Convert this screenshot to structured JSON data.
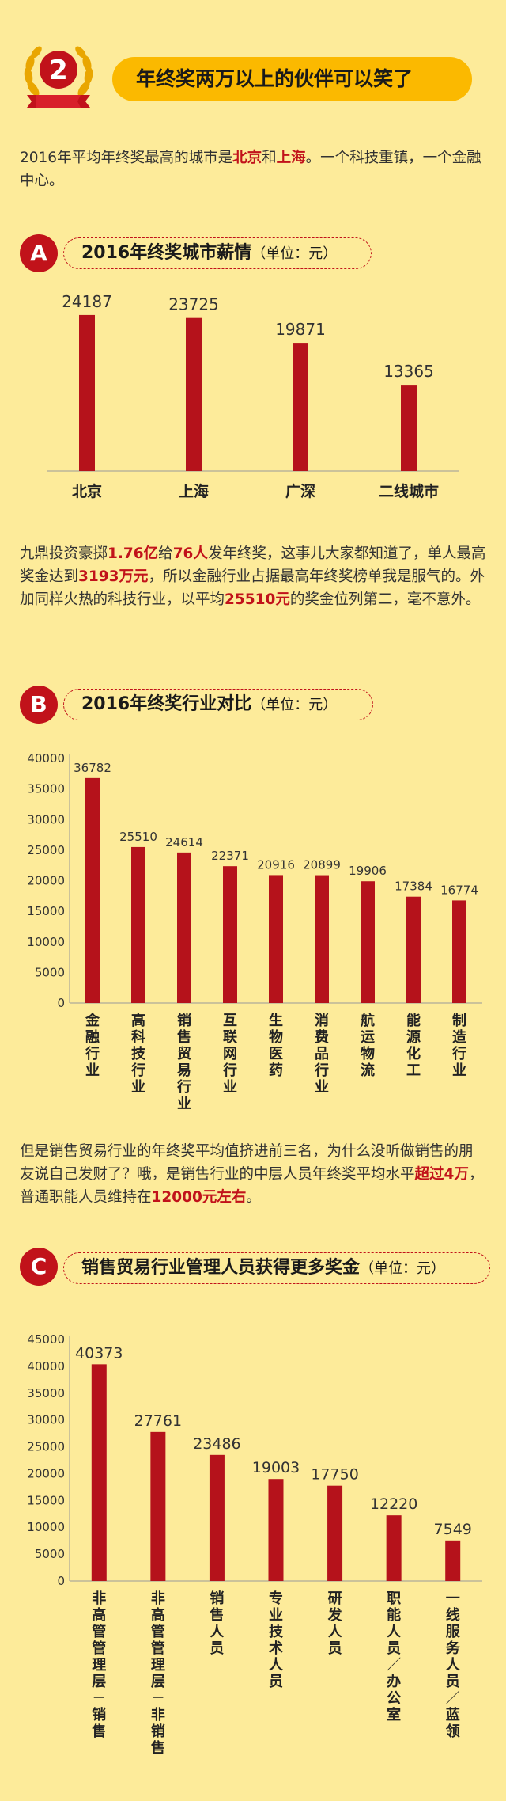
{
  "header": {
    "badge_number": "2",
    "title": "年终奖两万以上的伙伴可以笑了",
    "badge_color": "#c1121a",
    "wreath_color": "#e9a600"
  },
  "intro": {
    "t1": "2016年平均年终奖最高的城市是",
    "city1": "北京",
    "t2": "和",
    "city2": "上海",
    "t3": "。一个科技重镇，一个金融中心。"
  },
  "section_a": {
    "letter": "A",
    "title": "2016年终奖城市薪情",
    "unit": "（单位：元）"
  },
  "section_b": {
    "letter": "B",
    "title": "2016年终奖行业对比",
    "unit": "（单位：元）"
  },
  "section_c": {
    "letter": "C",
    "title": "销售贸易行业管理人员获得更多奖金",
    "unit": "（单位：元）"
  },
  "para2": {
    "t1": "九鼎投资豪掷",
    "v1": "1.76亿",
    "t2": "给",
    "v2": "76人",
    "t3": "发年终奖，这事儿大家都知道了，单人最高奖金达到",
    "v3": "3193万元",
    "t4": "，所以金融行业占据最高年终奖榜单我是服气的。外加同样火热的科技行业，以平均",
    "v4": "25510元",
    "t5": "的奖金位列第二，毫不意外。"
  },
  "para3": {
    "t1": "但是销售贸易行业的年终奖平均值挤进前三名，为什么没听做销售的朋友说自己发财了？哦，是销售行业的中层人员年终奖平均水平",
    "v1": "超过4万",
    "t2": "，普通职能人员维持在",
    "v2": "12000元左右",
    "t3": "。"
  },
  "chart_data": [
    {
      "type": "bar",
      "categories": [
        "北京",
        "上海",
        "广深",
        "二线城市"
      ],
      "values": [
        24187,
        23725,
        19871,
        13365
      ],
      "ylim": [
        0,
        27000
      ],
      "grid": false,
      "bar_color": "#b5121b"
    },
    {
      "type": "bar",
      "categories": [
        "金融行业",
        "高科技行业",
        "销售贸易行业",
        "互联网行业",
        "生物医药",
        "消费品行业",
        "航运物流",
        "能源化工",
        "制造行业"
      ],
      "values": [
        36782,
        25510,
        24614,
        22371,
        20916,
        20899,
        19906,
        17384,
        16774
      ],
      "ylim": [
        0,
        40000
      ],
      "yticks": [
        0,
        5000,
        10000,
        15000,
        20000,
        25000,
        30000,
        35000,
        40000
      ],
      "grid": false,
      "bar_color": "#b5121b"
    },
    {
      "type": "bar",
      "categories": [
        "非高管管理层－销售",
        "非高管管理层－非销售",
        "销售人员",
        "专业技术人员",
        "研发人员",
        "职能人员／办公室",
        "一线服务人员／蓝领"
      ],
      "values": [
        40373,
        27761,
        23486,
        19003,
        17750,
        12220,
        7549
      ],
      "ylim": [
        0,
        45000
      ],
      "yticks": [
        0,
        5000,
        10000,
        15000,
        20000,
        25000,
        30000,
        35000,
        40000,
        45000
      ],
      "grid": false,
      "bar_color": "#b5121b"
    }
  ]
}
